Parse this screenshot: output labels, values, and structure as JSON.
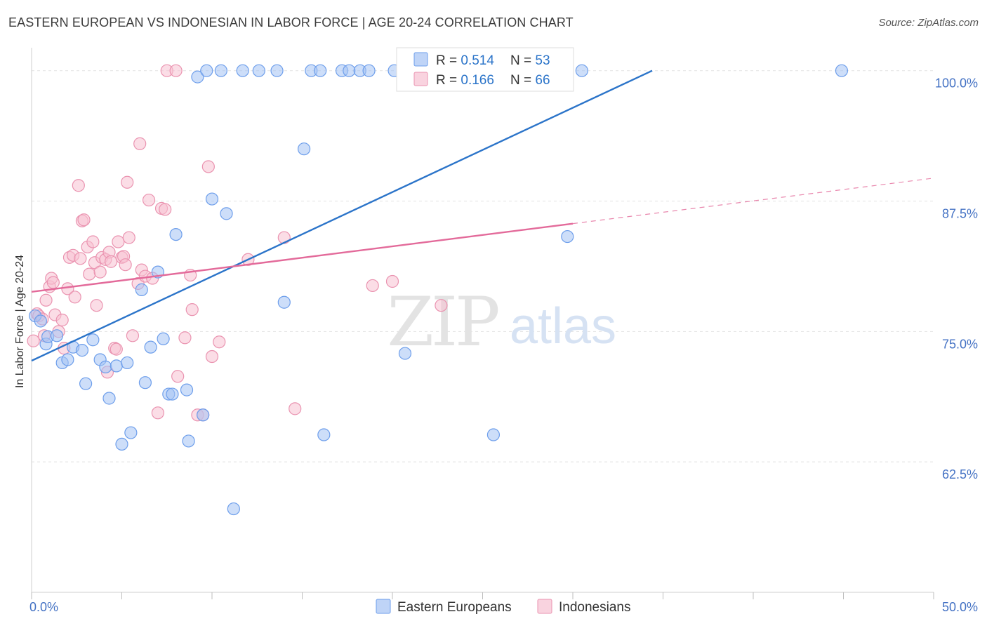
{
  "header": {
    "title": "EASTERN EUROPEAN VS INDONESIAN IN LABOR FORCE | AGE 20-24 CORRELATION CHART",
    "source": "Source: ZipAtlas.com"
  },
  "watermark": {
    "zip": "ZIP",
    "atlas": "atlas"
  },
  "colors": {
    "blue": "#6d9eeb",
    "blue_fill": "#a4c2f4",
    "blue_line": "#2b74c9",
    "pink": "#ea93b0",
    "pink_fill": "#f7c1d2",
    "pink_line": "#e36a9a",
    "axis_label": "#4472c4"
  },
  "chart_data": {
    "type": "scatter",
    "title": "EASTERN EUROPEAN VS INDONESIAN IN LABOR FORCE | AGE 20-24 CORRELATION CHART",
    "xlabel": "",
    "ylabel": "In Labor Force | Age 20-24",
    "xlim": [
      0,
      50
    ],
    "ylim": [
      50,
      102.2
    ],
    "x_tick_labels": [
      {
        "value": 0,
        "label": "0.0%"
      },
      {
        "value": 50,
        "label": "50.0%"
      }
    ],
    "y_tick_labels": [
      {
        "value": 100,
        "label": "100.0%"
      },
      {
        "value": 87.5,
        "label": "87.5%"
      },
      {
        "value": 75,
        "label": "75.0%"
      },
      {
        "value": 62.5,
        "label": "62.5%"
      }
    ],
    "grid": true,
    "legend_position": "top-center",
    "legend": [
      {
        "r_label": "R = ",
        "r_value": "0.514",
        "n_label": "N = ",
        "n_value": "53"
      },
      {
        "r_label": "R = ",
        "r_value": "0.166",
        "n_label": "N = ",
        "n_value": "66"
      }
    ],
    "bottom_legend": [
      "Eastern Europeans",
      "Indonesians"
    ],
    "series": [
      {
        "name": "Eastern Europeans",
        "trend": {
          "x0": 0,
          "y0": 72.2,
          "x1": 34.4,
          "y1": 100.0,
          "solid_until": 34.4
        },
        "points": [
          [
            0.2,
            76.5
          ],
          [
            0.5,
            76.0
          ],
          [
            0.8,
            73.8
          ],
          [
            0.9,
            74.5
          ],
          [
            1.4,
            74.6
          ],
          [
            1.7,
            72.0
          ],
          [
            2.0,
            72.3
          ],
          [
            2.3,
            73.5
          ],
          [
            2.8,
            73.2
          ],
          [
            3.0,
            70.0
          ],
          [
            3.4,
            74.2
          ],
          [
            3.8,
            72.3
          ],
          [
            4.1,
            71.6
          ],
          [
            4.3,
            68.6
          ],
          [
            4.7,
            71.7
          ],
          [
            5.0,
            64.2
          ],
          [
            5.3,
            72.0
          ],
          [
            5.5,
            65.3
          ],
          [
            6.1,
            79.0
          ],
          [
            6.3,
            70.1
          ],
          [
            6.6,
            73.5
          ],
          [
            7.0,
            80.7
          ],
          [
            7.3,
            74.3
          ],
          [
            7.6,
            69.0
          ],
          [
            7.8,
            69.0
          ],
          [
            8.0,
            84.3
          ],
          [
            8.6,
            69.4
          ],
          [
            8.7,
            64.5
          ],
          [
            9.2,
            99.4
          ],
          [
            9.5,
            67.0
          ],
          [
            9.7,
            100.0
          ],
          [
            10.0,
            87.7
          ],
          [
            10.5,
            100.0
          ],
          [
            10.8,
            86.3
          ],
          [
            11.2,
            58.0
          ],
          [
            11.7,
            100.0
          ],
          [
            12.6,
            100.0
          ],
          [
            13.6,
            100.0
          ],
          [
            14.0,
            77.8
          ],
          [
            15.1,
            92.5
          ],
          [
            15.5,
            100.0
          ],
          [
            16.0,
            100.0
          ],
          [
            16.2,
            65.1
          ],
          [
            17.2,
            100.0
          ],
          [
            17.6,
            100.0
          ],
          [
            18.2,
            100.0
          ],
          [
            18.7,
            100.0
          ],
          [
            20.1,
            100.0
          ],
          [
            20.7,
            72.9
          ],
          [
            25.6,
            65.1
          ],
          [
            29.7,
            84.1
          ],
          [
            30.5,
            100.0
          ],
          [
            44.9,
            100.0
          ]
        ]
      },
      {
        "name": "Indonesians",
        "trend": {
          "x0": 0,
          "y0": 78.8,
          "x1": 50,
          "y1": 89.7,
          "solid_until": 30.0
        },
        "points": [
          [
            0.1,
            74.1
          ],
          [
            0.3,
            76.7
          ],
          [
            0.4,
            76.5
          ],
          [
            0.6,
            76.2
          ],
          [
            0.7,
            74.6
          ],
          [
            0.8,
            78.0
          ],
          [
            1.0,
            79.3
          ],
          [
            1.1,
            80.1
          ],
          [
            1.2,
            79.7
          ],
          [
            1.3,
            76.6
          ],
          [
            1.5,
            75.0
          ],
          [
            1.7,
            76.1
          ],
          [
            1.8,
            73.4
          ],
          [
            2.0,
            79.1
          ],
          [
            2.1,
            82.1
          ],
          [
            2.3,
            82.3
          ],
          [
            2.4,
            78.3
          ],
          [
            2.6,
            89.0
          ],
          [
            2.7,
            82.0
          ],
          [
            2.8,
            85.6
          ],
          [
            2.9,
            85.7
          ],
          [
            3.1,
            83.1
          ],
          [
            3.2,
            80.5
          ],
          [
            3.4,
            83.6
          ],
          [
            3.5,
            81.6
          ],
          [
            3.6,
            77.5
          ],
          [
            3.8,
            80.7
          ],
          [
            3.9,
            82.1
          ],
          [
            4.1,
            81.9
          ],
          [
            4.2,
            71.1
          ],
          [
            4.3,
            82.6
          ],
          [
            4.4,
            81.7
          ],
          [
            4.6,
            73.4
          ],
          [
            4.7,
            73.3
          ],
          [
            4.8,
            83.6
          ],
          [
            5.0,
            82.1
          ],
          [
            5.1,
            82.2
          ],
          [
            5.2,
            81.4
          ],
          [
            5.3,
            89.3
          ],
          [
            5.4,
            84.0
          ],
          [
            5.6,
            74.6
          ],
          [
            5.9,
            79.6
          ],
          [
            6.0,
            93.0
          ],
          [
            6.1,
            80.9
          ],
          [
            6.3,
            80.3
          ],
          [
            6.5,
            87.6
          ],
          [
            6.7,
            80.1
          ],
          [
            7.0,
            67.2
          ],
          [
            7.2,
            86.8
          ],
          [
            7.4,
            86.7
          ],
          [
            7.5,
            100.0
          ],
          [
            8.0,
            100.0
          ],
          [
            8.1,
            70.7
          ],
          [
            8.5,
            74.4
          ],
          [
            8.8,
            80.4
          ],
          [
            8.9,
            77.1
          ],
          [
            9.2,
            67.0
          ],
          [
            9.5,
            67.0
          ],
          [
            9.8,
            90.8
          ],
          [
            10.0,
            72.6
          ],
          [
            10.4,
            74.0
          ],
          [
            12.0,
            81.9
          ],
          [
            14.0,
            84.0
          ],
          [
            14.6,
            67.6
          ],
          [
            18.9,
            79.4
          ],
          [
            20.0,
            79.8
          ],
          [
            22.7,
            77.5
          ]
        ]
      }
    ]
  }
}
